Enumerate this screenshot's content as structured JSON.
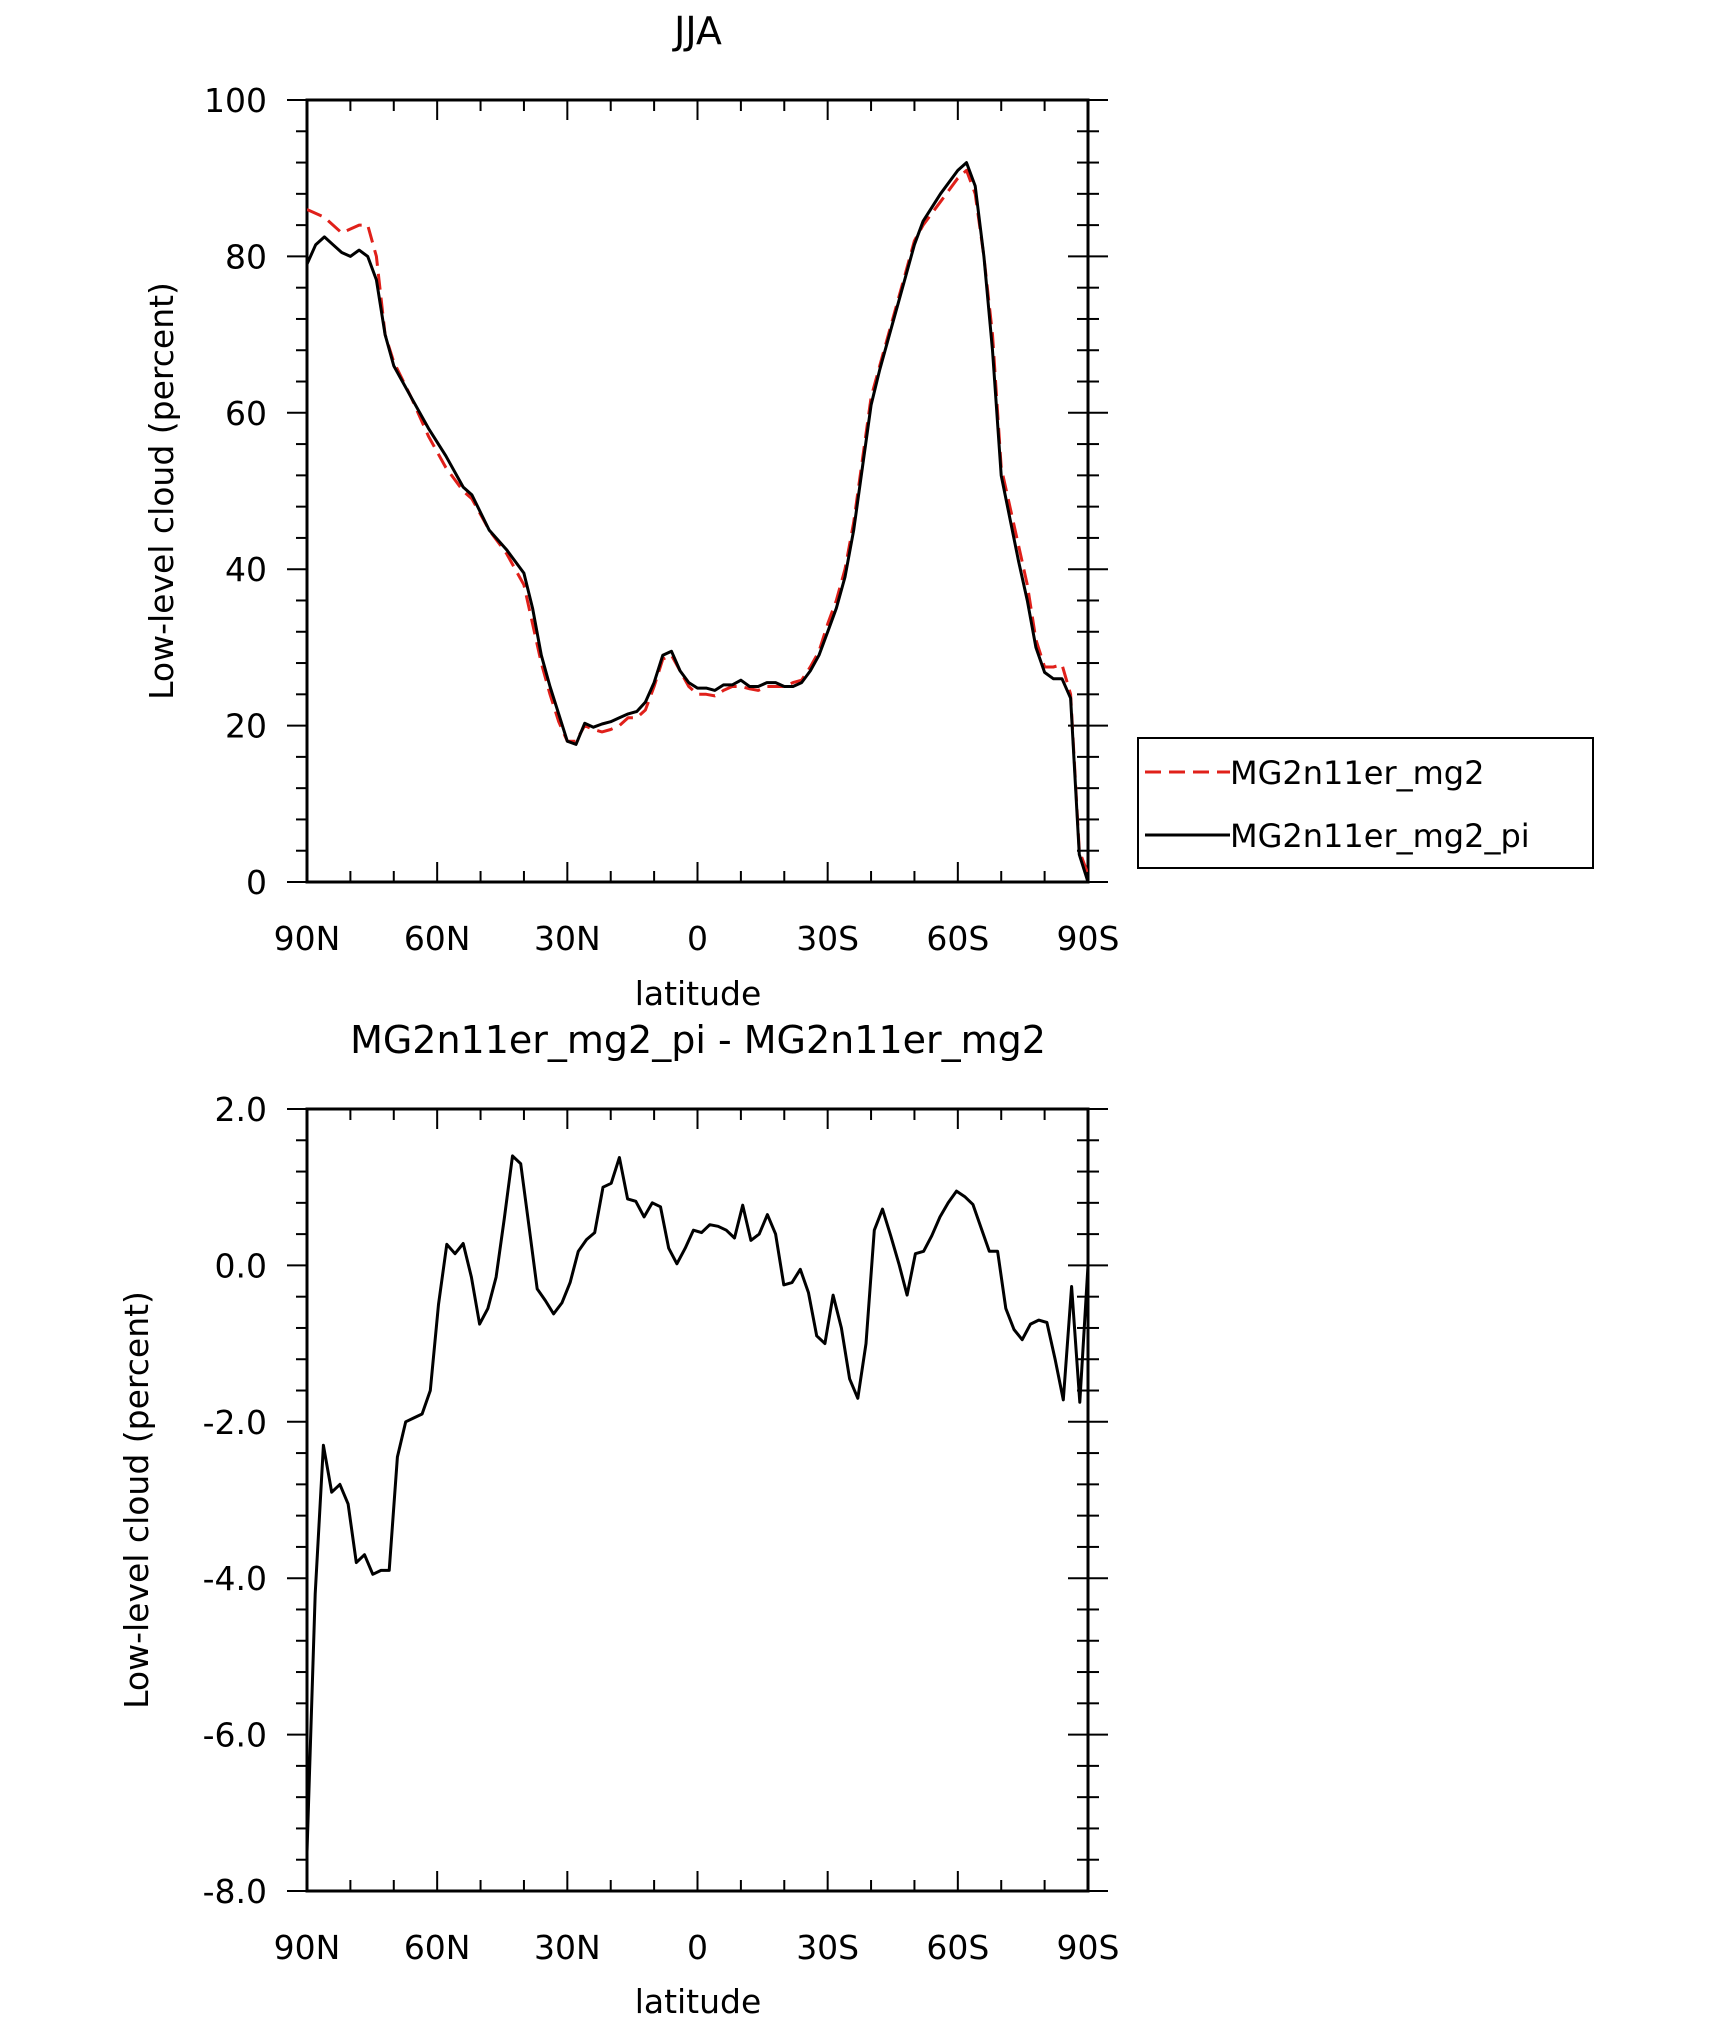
{
  "colors": {
    "series1": "#e0201a",
    "series2": "#000000",
    "axis": "#000000"
  },
  "chart_data": [
    {
      "type": "line",
      "title": "JJA",
      "xlabel": "latitude",
      "ylabel": "Low-level cloud (percent)",
      "xlim": [
        90,
        -90
      ],
      "ylim": [
        0,
        100
      ],
      "x_ticks": [
        {
          "value": 90,
          "label": "90N"
        },
        {
          "value": 60,
          "label": "60N"
        },
        {
          "value": 30,
          "label": "30N"
        },
        {
          "value": 0,
          "label": "0"
        },
        {
          "value": -30,
          "label": "30S"
        },
        {
          "value": -60,
          "label": "60S"
        },
        {
          "value": -90,
          "label": "90S"
        }
      ],
      "y_ticks": [
        {
          "value": 0,
          "label": "0"
        },
        {
          "value": 20,
          "label": "20"
        },
        {
          "value": 40,
          "label": "40"
        },
        {
          "value": 60,
          "label": "60"
        },
        {
          "value": 80,
          "label": "80"
        },
        {
          "value": 100,
          "label": "100"
        }
      ],
      "legend": "right",
      "series": [
        {
          "name": "MG2n11er_mg2",
          "style": "dashed",
          "color": "#e0201a",
          "points": [
            [
              90,
              86
            ],
            [
              86,
              85
            ],
            [
              82,
              83
            ],
            [
              80,
              83.5
            ],
            [
              78,
              84
            ],
            [
              76,
              84
            ],
            [
              74,
              80
            ],
            [
              72,
              70
            ],
            [
              70,
              66.5
            ],
            [
              66,
              62
            ],
            [
              62,
              57
            ],
            [
              58,
              53
            ],
            [
              54,
              50
            ],
            [
              52,
              49
            ],
            [
              48,
              45
            ],
            [
              44,
              42
            ],
            [
              40,
              38
            ],
            [
              38,
              33
            ],
            [
              36,
              28
            ],
            [
              34,
              24
            ],
            [
              32,
              20.5
            ],
            [
              30,
              18
            ],
            [
              28,
              18
            ],
            [
              26,
              20
            ],
            [
              24,
              19.5
            ],
            [
              22,
              19.2
            ],
            [
              20,
              19.5
            ],
            [
              18,
              20
            ],
            [
              16,
              21
            ],
            [
              14,
              21
            ],
            [
              12,
              22
            ],
            [
              10,
              25
            ],
            [
              8,
              28.5
            ],
            [
              6,
              29
            ],
            [
              4,
              27
            ],
            [
              2,
              25
            ],
            [
              0,
              24
            ],
            [
              -2,
              24
            ],
            [
              -4,
              23.8
            ],
            [
              -6,
              24.5
            ],
            [
              -8,
              25
            ],
            [
              -10,
              25
            ],
            [
              -12,
              24.7
            ],
            [
              -14,
              24.5
            ],
            [
              -16,
              25
            ],
            [
              -18,
              25
            ],
            [
              -20,
              25
            ],
            [
              -22,
              25.5
            ],
            [
              -24,
              25.8
            ],
            [
              -26,
              27.5
            ],
            [
              -28,
              29.5
            ],
            [
              -30,
              33
            ],
            [
              -32,
              36
            ],
            [
              -34,
              40
            ],
            [
              -36,
              46
            ],
            [
              -38,
              54
            ],
            [
              -40,
              62
            ],
            [
              -42,
              66
            ],
            [
              -44,
              70
            ],
            [
              -46,
              74
            ],
            [
              -48,
              78
            ],
            [
              -50,
              82
            ],
            [
              -52,
              84
            ],
            [
              -56,
              87
            ],
            [
              -60,
              90
            ],
            [
              -62,
              91
            ],
            [
              -64,
              88
            ],
            [
              -66,
              80
            ],
            [
              -68,
              70
            ],
            [
              -70,
              53
            ],
            [
              -72,
              48
            ],
            [
              -74,
              43
            ],
            [
              -76,
              38
            ],
            [
              -78,
              31
            ],
            [
              -80,
              27.5
            ],
            [
              -82,
              27.5
            ],
            [
              -84,
              27.8
            ],
            [
              -86,
              24
            ],
            [
              -88,
              4
            ],
            [
              -90,
              1
            ]
          ]
        },
        {
          "name": "MG2n11er_mg2_pi",
          "style": "solid",
          "color": "#000000",
          "points": [
            [
              90,
              79
            ],
            [
              88,
              81.5
            ],
            [
              86,
              82.5
            ],
            [
              84,
              81.5
            ],
            [
              82,
              80.5
            ],
            [
              80,
              80
            ],
            [
              78,
              80.8
            ],
            [
              76,
              80
            ],
            [
              74,
              77
            ],
            [
              72,
              70
            ],
            [
              70,
              66
            ],
            [
              66,
              62
            ],
            [
              62,
              58
            ],
            [
              58,
              54.5
            ],
            [
              54,
              50.5
            ],
            [
              52,
              49.5
            ],
            [
              48,
              45
            ],
            [
              44,
              42.5
            ],
            [
              40,
              39.5
            ],
            [
              38,
              35
            ],
            [
              36,
              29
            ],
            [
              34,
              25
            ],
            [
              32,
              21.5
            ],
            [
              30,
              18
            ],
            [
              28,
              17.6
            ],
            [
              26,
              20.3
            ],
            [
              24,
              19.8
            ],
            [
              22,
              20.2
            ],
            [
              20,
              20.5
            ],
            [
              18,
              21
            ],
            [
              16,
              21.5
            ],
            [
              14,
              21.8
            ],
            [
              12,
              23
            ],
            [
              10,
              25.5
            ],
            [
              8,
              29
            ],
            [
              6,
              29.5
            ],
            [
              4,
              27
            ],
            [
              2,
              25.5
            ],
            [
              0,
              24.8
            ],
            [
              -2,
              24.8
            ],
            [
              -4,
              24.5
            ],
            [
              -6,
              25.2
            ],
            [
              -8,
              25.2
            ],
            [
              -10,
              25.8
            ],
            [
              -12,
              25
            ],
            [
              -14,
              25
            ],
            [
              -16,
              25.5
            ],
            [
              -18,
              25.5
            ],
            [
              -20,
              25
            ],
            [
              -22,
              25
            ],
            [
              -24,
              25.5
            ],
            [
              -26,
              27
            ],
            [
              -28,
              29
            ],
            [
              -30,
              32
            ],
            [
              -32,
              35
            ],
            [
              -34,
              39
            ],
            [
              -36,
              45
            ],
            [
              -38,
              53
            ],
            [
              -40,
              61
            ],
            [
              -42,
              65.5
            ],
            [
              -44,
              69.5
            ],
            [
              -46,
              73.5
            ],
            [
              -48,
              77.5
            ],
            [
              -50,
              81.5
            ],
            [
              -52,
              84.5
            ],
            [
              -56,
              88
            ],
            [
              -60,
              91
            ],
            [
              -62,
              92
            ],
            [
              -64,
              89
            ],
            [
              -66,
              80
            ],
            [
              -68,
              68
            ],
            [
              -70,
              52
            ],
            [
              -72,
              46.5
            ],
            [
              -74,
              41
            ],
            [
              -76,
              36
            ],
            [
              -78,
              30
            ],
            [
              -80,
              26.8
            ],
            [
              -82,
              26
            ],
            [
              -84,
              26
            ],
            [
              -86,
              23.5
            ],
            [
              -88,
              3.5
            ],
            [
              -90,
              0
            ]
          ]
        }
      ]
    },
    {
      "type": "line",
      "title": "MG2n11er_mg2_pi - MG2n11er_mg2",
      "xlabel": "latitude",
      "ylabel": "Low-level cloud (percent)",
      "xlim": [
        90,
        -90
      ],
      "ylim": [
        -8,
        2
      ],
      "x_ticks": [
        {
          "value": 90,
          "label": "90N"
        },
        {
          "value": 60,
          "label": "60N"
        },
        {
          "value": 30,
          "label": "30N"
        },
        {
          "value": 0,
          "label": "0"
        },
        {
          "value": -30,
          "label": "30S"
        },
        {
          "value": -60,
          "label": "60S"
        },
        {
          "value": -90,
          "label": "90S"
        }
      ],
      "y_ticks": [
        {
          "value": -8,
          "label": "-8.0"
        },
        {
          "value": -6,
          "label": "-6.0"
        },
        {
          "value": -4,
          "label": "-4.0"
        },
        {
          "value": -2,
          "label": "-2.0"
        },
        {
          "value": 0,
          "label": "0.0"
        },
        {
          "value": 2,
          "label": "2.0"
        }
      ],
      "series": [
        {
          "name": "",
          "style": "solid",
          "color": "#000000",
          "points": [
            [
              90,
              -7.5
            ],
            [
              88,
              -4.2
            ],
            [
              86,
              -2.3
            ],
            [
              84,
              -2.9
            ],
            [
              82,
              -2.8
            ],
            [
              80,
              -3.05
            ],
            [
              78,
              -3.8
            ],
            [
              76,
              -3.7
            ],
            [
              74,
              -3.95
            ],
            [
              72,
              -3.9
            ],
            [
              70,
              -3.9
            ],
            [
              68,
              -2.45
            ],
            [
              66,
              -2.0
            ],
            [
              64,
              -1.95
            ],
            [
              62,
              -1.9
            ],
            [
              60,
              -1.6
            ],
            [
              58,
              -0.5
            ],
            [
              56,
              0.27
            ],
            [
              54,
              0.15
            ],
            [
              52,
              0.28
            ],
            [
              50,
              -0.15
            ],
            [
              48,
              -0.75
            ],
            [
              46,
              -0.55
            ],
            [
              44,
              -0.15
            ],
            [
              42,
              0.6
            ],
            [
              40,
              1.4
            ],
            [
              38,
              1.3
            ],
            [
              36,
              0.5
            ],
            [
              34,
              -0.3
            ],
            [
              32,
              -0.45
            ],
            [
              30,
              -0.62
            ],
            [
              28,
              -0.48
            ],
            [
              26,
              -0.22
            ],
            [
              24,
              0.18
            ],
            [
              22,
              0.33
            ],
            [
              20,
              0.42
            ],
            [
              18,
              1.0
            ],
            [
              16,
              1.05
            ],
            [
              14,
              1.38
            ],
            [
              12,
              0.85
            ],
            [
              10,
              0.82
            ],
            [
              8,
              0.62
            ],
            [
              6,
              0.8
            ],
            [
              4,
              0.75
            ],
            [
              2,
              0.22
            ],
            [
              0,
              0.02
            ],
            [
              -2,
              0.22
            ],
            [
              -4,
              0.45
            ],
            [
              -6,
              0.42
            ],
            [
              -8,
              0.52
            ],
            [
              -10,
              0.5
            ],
            [
              -12,
              0.45
            ],
            [
              -14,
              0.35
            ],
            [
              -16,
              0.77
            ],
            [
              -18,
              0.32
            ],
            [
              -20,
              0.4
            ],
            [
              -22,
              0.65
            ],
            [
              -24,
              0.4
            ],
            [
              -26,
              -0.25
            ],
            [
              -28,
              -0.22
            ],
            [
              -30,
              -0.05
            ],
            [
              -32,
              -0.35
            ],
            [
              -34,
              -0.9
            ],
            [
              -36,
              -1.0
            ],
            [
              -38,
              -0.38
            ],
            [
              -40,
              -0.8
            ],
            [
              -42,
              -1.45
            ],
            [
              -44,
              -1.7
            ],
            [
              -46,
              -1.0
            ],
            [
              -48,
              0.45
            ],
            [
              -50,
              0.72
            ],
            [
              -52,
              0.38
            ],
            [
              -54,
              0.02
            ],
            [
              -56,
              -0.38
            ],
            [
              -58,
              0.15
            ],
            [
              -60,
              0.18
            ],
            [
              -62,
              0.38
            ],
            [
              -64,
              0.62
            ],
            [
              -66,
              0.8
            ],
            [
              -68,
              0.95
            ],
            [
              -70,
              0.88
            ],
            [
              -72,
              0.78
            ],
            [
              -74,
              0.48
            ],
            [
              -76,
              0.18
            ],
            [
              -78,
              0.18
            ],
            [
              -80,
              -0.55
            ],
            [
              -82,
              -0.82
            ],
            [
              -84,
              -0.95
            ],
            [
              -86,
              -0.75
            ],
            [
              -88,
              -0.7
            ],
            [
              -90,
              -0.73
            ],
            [
              -92,
              -1.2
            ],
            [
              -94,
              -1.72
            ],
            [
              -96,
              -0.27
            ],
            [
              -98,
              -1.75
            ],
            [
              -100,
              0.0
            ]
          ]
        }
      ]
    }
  ]
}
